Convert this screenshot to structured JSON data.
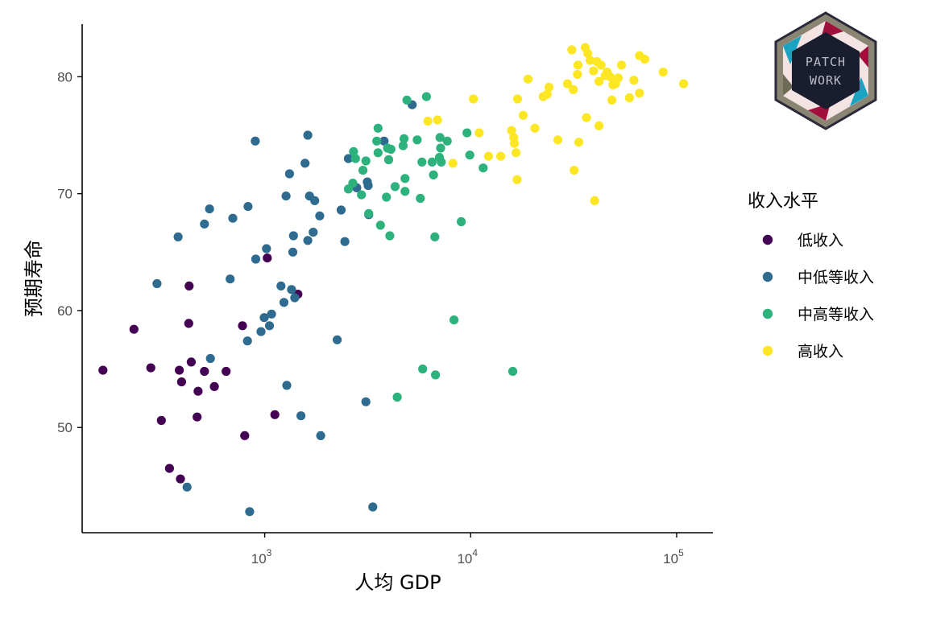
{
  "logo": {
    "line1": "PATCH",
    "line2": "WORK"
  },
  "chart_data": {
    "type": "scatter",
    "xlabel": "人均 GDP",
    "ylabel": "预期寿命",
    "x_scale": "log10",
    "xlim": [
      130,
      150000
    ],
    "ylim": [
      41,
      84.5
    ],
    "x_ticks": [
      {
        "value": 1000,
        "base": "10",
        "exp": "3"
      },
      {
        "value": 10000,
        "base": "10",
        "exp": "4"
      },
      {
        "value": 100000,
        "base": "10",
        "exp": "5"
      }
    ],
    "y_ticks": [
      50,
      60,
      70,
      80
    ],
    "grid": false,
    "legend": {
      "title": "收入水平",
      "position": "right",
      "entries": [
        "低收入",
        "中低等收入",
        "中高等收入",
        "高收入"
      ]
    },
    "series": [
      {
        "name": "低收入",
        "color": "#440154",
        "points": [
          [
            164,
            54.9
          ],
          [
            232,
            58.4
          ],
          [
            280,
            55.1
          ],
          [
            315,
            50.6
          ],
          [
            345,
            46.5
          ],
          [
            390,
            45.6
          ],
          [
            385,
            54.9
          ],
          [
            395,
            53.9
          ],
          [
            430,
            62.1
          ],
          [
            428,
            58.9
          ],
          [
            440,
            55.6
          ],
          [
            475,
            53.1
          ],
          [
            470,
            50.9
          ],
          [
            510,
            54.8
          ],
          [
            570,
            53.5
          ],
          [
            650,
            54.8
          ],
          [
            780,
            58.7
          ],
          [
            800,
            49.3
          ],
          [
            1030,
            64.5
          ],
          [
            1120,
            51.1
          ],
          [
            1450,
            61.4
          ]
        ]
      },
      {
        "name": "中低等收入",
        "color": "#2f6b8e",
        "points": [
          [
            300,
            62.3
          ],
          [
            380,
            66.3
          ],
          [
            420,
            44.9
          ],
          [
            510,
            67.4
          ],
          [
            540,
            68.7
          ],
          [
            545,
            55.9
          ],
          [
            680,
            62.7
          ],
          [
            700,
            67.9
          ],
          [
            830,
            68.9
          ],
          [
            825,
            57.4
          ],
          [
            845,
            42.8
          ],
          [
            900,
            74.5
          ],
          [
            905,
            64.4
          ],
          [
            960,
            58.2
          ],
          [
            995,
            59.4
          ],
          [
            1020,
            65.3
          ],
          [
            1055,
            58.7
          ],
          [
            1080,
            59.7
          ],
          [
            1200,
            62.1
          ],
          [
            1240,
            60.7
          ],
          [
            1270,
            69.8
          ],
          [
            1280,
            53.6
          ],
          [
            1320,
            71.7
          ],
          [
            1350,
            61.8
          ],
          [
            1380,
            66.4
          ],
          [
            1370,
            65.0
          ],
          [
            1400,
            61.1
          ],
          [
            1500,
            51.0
          ],
          [
            1570,
            72.6
          ],
          [
            1620,
            75.0
          ],
          [
            1620,
            66.0
          ],
          [
            1650,
            69.8
          ],
          [
            1720,
            66.7
          ],
          [
            1750,
            69.4
          ],
          [
            1850,
            68.1
          ],
          [
            1870,
            49.3
          ],
          [
            2250,
            57.5
          ],
          [
            2350,
            68.6
          ],
          [
            2450,
            65.9
          ],
          [
            2550,
            73.0
          ],
          [
            2800,
            70.5
          ],
          [
            3100,
            52.2
          ],
          [
            3150,
            71.0
          ],
          [
            3180,
            70.7
          ],
          [
            3200,
            68.2
          ],
          [
            3350,
            43.2
          ],
          [
            3800,
            74.5
          ],
          [
            5200,
            77.6
          ]
        ]
      },
      {
        "name": "中高等收入",
        "color": "#2db27d",
        "points": [
          [
            2550,
            70.4
          ],
          [
            2680,
            70.9
          ],
          [
            2700,
            73.6
          ],
          [
            2760,
            73.0
          ],
          [
            3000,
            72.0
          ],
          [
            2950,
            69.9
          ],
          [
            3100,
            72.8
          ],
          [
            3200,
            68.3
          ],
          [
            3500,
            74.5
          ],
          [
            3550,
            73.5
          ],
          [
            3550,
            75.6
          ],
          [
            3650,
            67.3
          ],
          [
            3900,
            69.7
          ],
          [
            3950,
            73.9
          ],
          [
            4000,
            72.9
          ],
          [
            4050,
            66.4
          ],
          [
            4100,
            73.8
          ],
          [
            4300,
            70.6
          ],
          [
            4400,
            52.6
          ],
          [
            4700,
            74.1
          ],
          [
            4750,
            74.7
          ],
          [
            4800,
            71.3
          ],
          [
            4800,
            70.2
          ],
          [
            4900,
            78.0
          ],
          [
            5500,
            74.6
          ],
          [
            5700,
            69.6
          ],
          [
            5800,
            72.7
          ],
          [
            5850,
            55.0
          ],
          [
            6100,
            78.3
          ],
          [
            6500,
            72.7
          ],
          [
            6600,
            71.6
          ],
          [
            6700,
            66.3
          ],
          [
            6750,
            54.5
          ],
          [
            7050,
            73.1
          ],
          [
            7150,
            73.9
          ],
          [
            7100,
            74.8
          ],
          [
            7200,
            72.7
          ],
          [
            7700,
            74.5
          ],
          [
            8300,
            59.2
          ],
          [
            9000,
            67.6
          ],
          [
            9600,
            75.2
          ],
          [
            9900,
            73.3
          ],
          [
            11500,
            72.2
          ],
          [
            16000,
            54.8
          ]
        ]
      },
      {
        "name": "高收入",
        "color": "#fde725",
        "points": [
          [
            6200,
            76.2
          ],
          [
            6900,
            76.3
          ],
          [
            8200,
            72.6
          ],
          [
            10300,
            78.1
          ],
          [
            11000,
            75.2
          ],
          [
            12200,
            73.2
          ],
          [
            14000,
            73.2
          ],
          [
            15800,
            75.4
          ],
          [
            16200,
            74.8
          ],
          [
            16300,
            74.3
          ],
          [
            16600,
            73.5
          ],
          [
            16900,
            78.1
          ],
          [
            16800,
            71.2
          ],
          [
            18000,
            76.7
          ],
          [
            19000,
            79.8
          ],
          [
            20500,
            75.6
          ],
          [
            22500,
            78.3
          ],
          [
            23500,
            78.5
          ],
          [
            24000,
            79.1
          ],
          [
            26500,
            74.6
          ],
          [
            29500,
            79.4
          ],
          [
            31000,
            82.3
          ],
          [
            31500,
            78.9
          ],
          [
            31800,
            72.0
          ],
          [
            33000,
            80.2
          ],
          [
            33200,
            81.0
          ],
          [
            33500,
            74.4
          ],
          [
            36000,
            82.5
          ],
          [
            36500,
            76.5
          ],
          [
            37000,
            82.0
          ],
          [
            38000,
            81.4
          ],
          [
            39500,
            80.5
          ],
          [
            40000,
            69.4
          ],
          [
            41000,
            81.3
          ],
          [
            42000,
            79.6
          ],
          [
            42000,
            75.8
          ],
          [
            43000,
            81.0
          ],
          [
            45000,
            80.1
          ],
          [
            46000,
            80.4
          ],
          [
            47500,
            80.0
          ],
          [
            48500,
            78.0
          ],
          [
            49000,
            79.3
          ],
          [
            50500,
            79.4
          ],
          [
            52000,
            79.9
          ],
          [
            54000,
            81.0
          ],
          [
            59000,
            78.2
          ],
          [
            62000,
            79.7
          ],
          [
            66000,
            81.8
          ],
          [
            66000,
            78.6
          ],
          [
            70000,
            81.5
          ],
          [
            86000,
            80.4
          ],
          [
            108000,
            79.4
          ]
        ]
      }
    ]
  }
}
